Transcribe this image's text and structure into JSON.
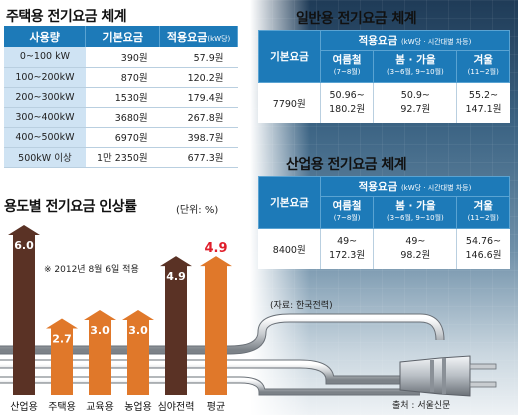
{
  "residential": {
    "title": "주택용 전기요금 체계",
    "headers": [
      "사용량",
      "기본요금",
      "적용요금",
      "(kW당)"
    ],
    "rows": [
      [
        "0~100 kW",
        "390원",
        "57.9원"
      ],
      [
        "100~200kW",
        "870원",
        "120.2원"
      ],
      [
        "200~300kW",
        "1530원",
        "179.4원"
      ],
      [
        "300~400kW",
        "3680원",
        "267.8원"
      ],
      [
        "400~500kW",
        "6970원",
        "398.7원"
      ],
      [
        "500kW 이상",
        "1만 2350원",
        "677.3원"
      ]
    ]
  },
  "general": {
    "title": "일반용 전기요금 체계",
    "base_header": "기본요금",
    "rate_header": "적용요금",
    "rate_unit": "(kW당 · 시간대별 차등)",
    "seasons": [
      {
        "name": "여름철",
        "months": "(7~8월)"
      },
      {
        "name": "봄 · 가을",
        "months": "(3~6월, 9~10월)"
      },
      {
        "name": "겨울",
        "months": "(11~2월)"
      }
    ],
    "base": "7790원",
    "values": [
      [
        "50.96~",
        "180.2원"
      ],
      [
        "50.9~",
        "92.7원"
      ],
      [
        "55.2~",
        "147.1원"
      ]
    ]
  },
  "industrial": {
    "title": "산업용 전기요금 체계",
    "base_header": "기본요금",
    "rate_header": "적용요금",
    "rate_unit": "(kW당 · 시간대별 차등)",
    "seasons": [
      {
        "name": "여름철",
        "months": "(7~8월)"
      },
      {
        "name": "봄 · 가을",
        "months": "(3~6월, 9~10월)"
      },
      {
        "name": "겨울",
        "months": "(11~2월)"
      }
    ],
    "base": "8400원",
    "values": [
      [
        "49~",
        "172.3원"
      ],
      [
        "49~",
        "98.2원"
      ],
      [
        "54.76~",
        "146.6원"
      ]
    ]
  },
  "chart_data": {
    "type": "bar",
    "title": "용도별 전기요금 인상률",
    "unit": "(단위: %)",
    "categories": [
      "산업용",
      "주택용",
      "교육용",
      "농업용",
      "심야전력",
      "평균"
    ],
    "values": [
      6.0,
      2.7,
      3.0,
      3.0,
      4.9,
      4.9
    ],
    "value_labels": [
      "6.0",
      "2.7",
      "3.0",
      "3.0",
      "4.9",
      "4.9"
    ],
    "note": "※ 2012년 8월 6일 적용",
    "source": "(자료: 한국전력)"
  },
  "credit": "출처 : 서울신문",
  "colors": {
    "header_blue": "#1d7ab8",
    "bar_dark": "#5a3225",
    "bar_orange": "#e0782a",
    "avg_red": "#e01e2b"
  }
}
